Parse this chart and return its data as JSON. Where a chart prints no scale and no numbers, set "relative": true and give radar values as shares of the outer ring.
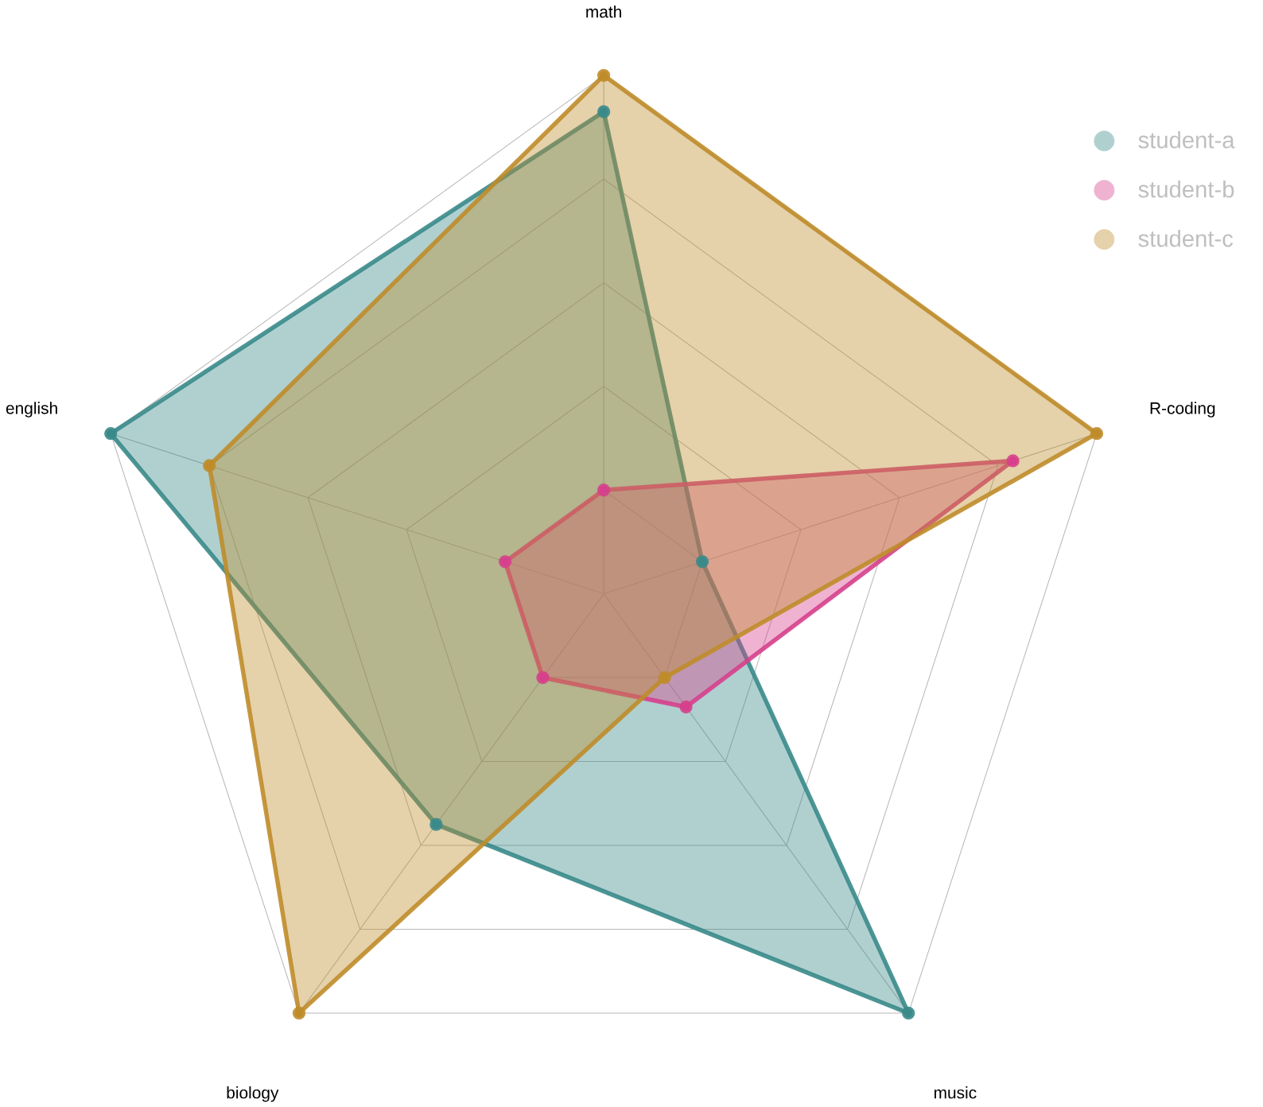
{
  "chart_data": {
    "type": "radar",
    "relative": true,
    "categories": [
      "math",
      "R-coding",
      "music",
      "biology",
      "english"
    ],
    "series": [
      {
        "name": "student-a",
        "color": "#3a8a8a",
        "values": [
          0.93,
          0.2,
          1.0,
          0.55,
          1.0
        ]
      },
      {
        "name": "student-b",
        "color": "#d6408c",
        "values": [
          0.2,
          0.83,
          0.27,
          0.2,
          0.2
        ]
      },
      {
        "name": "student-c",
        "color": "#bf8c2a",
        "values": [
          1.0,
          1.0,
          0.2,
          1.0,
          0.8
        ]
      }
    ],
    "grid": true,
    "legend": "top right",
    "marker": "circle",
    "line_style": "solid"
  }
}
